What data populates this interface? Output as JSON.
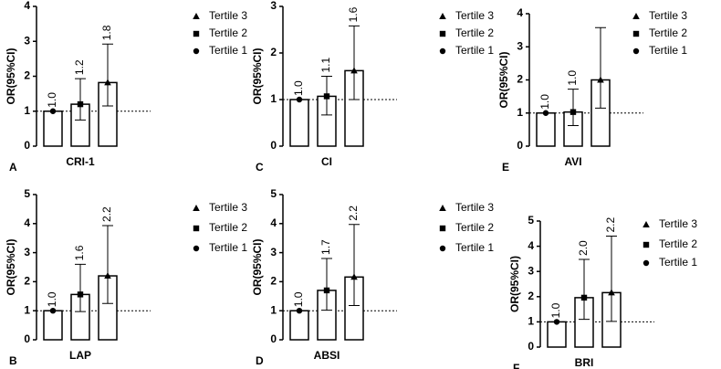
{
  "chart_data": [
    {
      "type": "bar",
      "panel": "A",
      "xlabel": "CRI-1",
      "ylabel": "OR(95%CI)",
      "categories": [
        "Tertile 1",
        "Tertile 2",
        "Tertile 3"
      ],
      "values": [
        1,
        1.2,
        1.82
      ],
      "value_labels": [
        "1.0",
        "1.2",
        "1.8"
      ],
      "ci_low": [
        null,
        0.75,
        1.15
      ],
      "ci_high": [
        null,
        1.93,
        2.92
      ],
      "ylim": [
        0,
        4
      ],
      "yticks": [
        0,
        1,
        2,
        3,
        4
      ],
      "reference_line": 1,
      "color": "#ffffff"
    },
    {
      "type": "bar",
      "panel": "C",
      "xlabel": "CI",
      "ylabel": "OR(95%CI)",
      "categories": [
        "Tertile 1",
        "Tertile 2",
        "Tertile 3"
      ],
      "values": [
        1,
        1.07,
        1.62
      ],
      "value_labels": [
        "1.0",
        "1.1",
        "1.6"
      ],
      "ci_low": [
        null,
        0.67,
        1.0
      ],
      "ci_high": [
        null,
        1.5,
        2.58
      ],
      "ylim": [
        0,
        3
      ],
      "yticks": [
        0,
        1,
        2,
        3
      ],
      "reference_line": 1,
      "color": "#ffffff"
    },
    {
      "type": "bar",
      "panel": "E",
      "xlabel": "AVI",
      "ylabel": "OR(95%CI)",
      "categories": [
        "Tertile 1",
        "Tertile 2",
        "Tertile 3"
      ],
      "values": [
        1,
        1.03,
        2.0
      ],
      "value_labels": [
        "1.0",
        "1.0",
        null
      ],
      "ci_low": [
        null,
        0.62,
        1.15
      ],
      "ci_high": [
        null,
        1.72,
        3.58
      ],
      "ylim": [
        0,
        4
      ],
      "yticks": [
        0,
        1,
        2,
        3,
        4
      ],
      "reference_line": 1,
      "color": "#ffffff"
    },
    {
      "type": "bar",
      "panel": "B",
      "xlabel": "LAP",
      "ylabel": "OR(95%CI)",
      "categories": [
        "Tertile 1",
        "Tertile 2",
        "Tertile 3"
      ],
      "values": [
        1,
        1.56,
        2.2
      ],
      "value_labels": [
        "1.0",
        "1.6",
        "2.2"
      ],
      "ci_low": [
        null,
        0.97,
        1.25
      ],
      "ci_high": [
        null,
        2.6,
        3.93
      ],
      "ylim": [
        0,
        5
      ],
      "yticks": [
        0,
        1,
        2,
        3,
        4,
        5
      ],
      "reference_line": 1,
      "color": "#ffffff"
    },
    {
      "type": "bar",
      "panel": "D",
      "xlabel": "ABSI",
      "ylabel": "OR(95%CI)",
      "categories": [
        "Tertile 1",
        "Tertile 2",
        "Tertile 3"
      ],
      "values": [
        1,
        1.7,
        2.16
      ],
      "value_labels": [
        "1.0",
        "1.7",
        "2.2"
      ],
      "ci_low": [
        null,
        1.02,
        1.18
      ],
      "ci_high": [
        null,
        2.8,
        3.97
      ],
      "ylim": [
        0,
        5
      ],
      "yticks": [
        0,
        1,
        2,
        3,
        4,
        5
      ],
      "reference_line": 1,
      "color": "#ffffff"
    },
    {
      "type": "bar",
      "panel": "F",
      "xlabel": "BRI",
      "ylabel": "OR(95%CI)",
      "categories": [
        "Tertile 1",
        "Tertile 2",
        "Tertile 3"
      ],
      "values": [
        1,
        1.96,
        2.16
      ],
      "value_labels": [
        "1.0",
        "2.0",
        "2.2"
      ],
      "ci_low": [
        null,
        1.1,
        1.02
      ],
      "ci_high": [
        null,
        3.48,
        4.4
      ],
      "ylim": [
        0,
        5
      ],
      "yticks": [
        0,
        1,
        2,
        3,
        4,
        5
      ],
      "reference_line": 1,
      "color": "#ffffff"
    }
  ]
}
